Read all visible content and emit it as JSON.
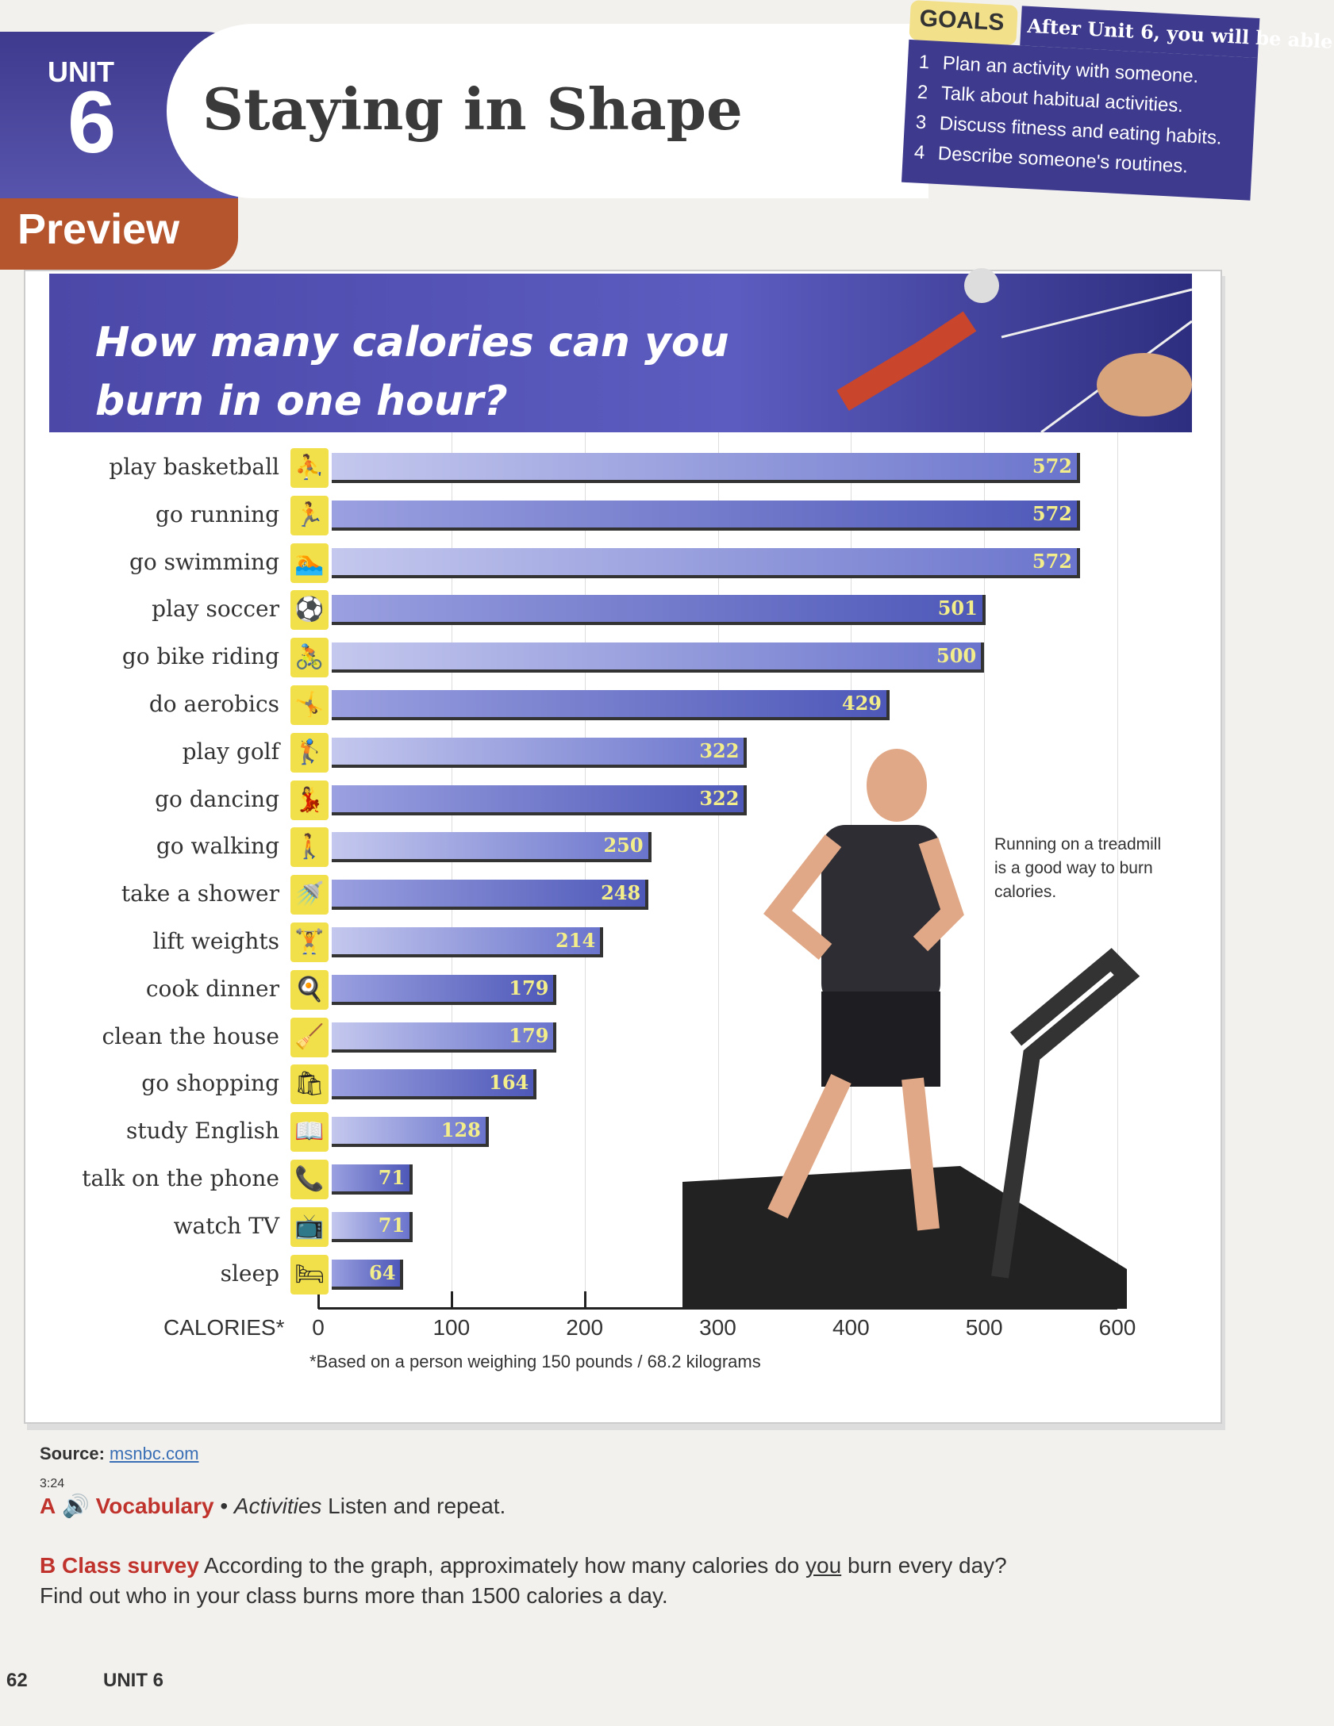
{
  "header": {
    "unit_label": "UNIT",
    "unit_number": "6",
    "title": "Staying in Shape",
    "preview": "Preview"
  },
  "goals": {
    "tab": "GOALS",
    "heading": "After Unit 6, you will be able",
    "items": [
      "Plan an activity with someone.",
      "Talk about habitual activities.",
      "Discuss fitness and eating habits.",
      "Describe someone's routines."
    ]
  },
  "chart_data": {
    "type": "bar",
    "orientation": "horizontal",
    "title": "How many calories can you burn in one hour?",
    "xlabel": "CALORIES*",
    "xlim": [
      0,
      600
    ],
    "xticks": [
      0,
      100,
      200,
      300,
      400,
      500,
      600
    ],
    "grid": true,
    "categories": [
      "play basketball",
      "go running",
      "go swimming",
      "play soccer",
      "go bike riding",
      "do aerobics",
      "play golf",
      "go dancing",
      "go walking",
      "take a shower",
      "lift weights",
      "cook dinner",
      "clean the house",
      "go shopping",
      "study English",
      "talk on the phone",
      "watch TV",
      "sleep"
    ],
    "values": [
      572,
      572,
      572,
      501,
      500,
      429,
      322,
      322,
      250,
      248,
      214,
      179,
      179,
      164,
      128,
      71,
      71,
      64
    ],
    "icons": [
      "basketball-player-icon",
      "runner-icon",
      "swimmer-icon",
      "soccer-player-icon",
      "cyclist-icon",
      "aerobics-icon",
      "golfer-icon",
      "dancers-icon",
      "walker-icon",
      "shower-icon",
      "weightlifter-icon",
      "cooking-icon",
      "cleaning-icon",
      "shopping-icon",
      "studying-icon",
      "phone-icon",
      "tv-icon",
      "bed-icon"
    ],
    "footnote": "*Based on a person weighing 150 pounds / 68.2 kilograms",
    "colors": {
      "bar": "#6a74cc",
      "label": "#f4ee8a",
      "icon_bg": "#f2e04a"
    }
  },
  "photo_caption": "Running on a treadmill is a good way to burn calories.",
  "source": {
    "label": "Source:",
    "link": "msnbc.com"
  },
  "exercise_a": {
    "letter": "A",
    "track": "3:24",
    "title": "Vocabulary",
    "bullet": "•",
    "topic": "Activities",
    "instruction": "Listen and repeat."
  },
  "exercise_b": {
    "letter": "B",
    "title": "Class survey",
    "text_before": "According to the graph, approximately how many calories do ",
    "emph": "you",
    "text_after": " burn every day? Find out who in your class burns more than 1500 calories a day."
  },
  "footer": {
    "page": "62",
    "unit": "UNIT 6"
  }
}
